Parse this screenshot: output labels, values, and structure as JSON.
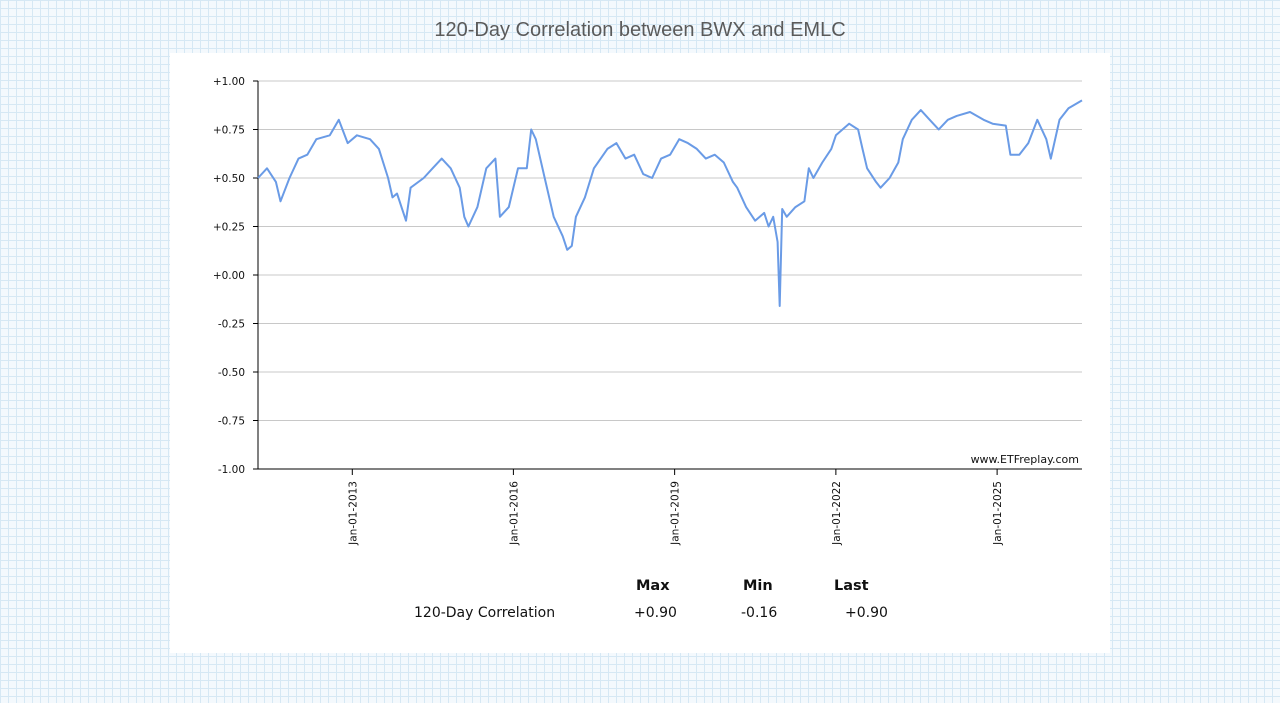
{
  "title": "120-Day Correlation between BWX and EMLC",
  "watermark": "www.ETFreplay.com",
  "colors": {
    "line": "#6a9be6",
    "grid": "#c8c8c8",
    "axis": "#000000"
  },
  "chart_data": {
    "type": "line",
    "title": "120-Day Correlation between BWX and EMLC",
    "xlabel": "",
    "ylabel": "",
    "ylim": [
      -1.0,
      1.0
    ],
    "xlim": [
      "2011-04-01",
      "2026-08-01"
    ],
    "grid": true,
    "y_ticks": [
      "+1.00",
      "+0.75",
      "+0.50",
      "+0.25",
      "+0.00",
      "-0.25",
      "-0.50",
      "-0.75",
      "-1.00"
    ],
    "x_ticks": [
      {
        "date": "2013-01-01",
        "label": "Jan-01-2013"
      },
      {
        "date": "2016-01-01",
        "label": "Jan-01-2016"
      },
      {
        "date": "2019-01-01",
        "label": "Jan-01-2019"
      },
      {
        "date": "2022-01-01",
        "label": "Jan-01-2022"
      },
      {
        "date": "2025-01-01",
        "label": "Jan-01-2025"
      }
    ],
    "series": [
      {
        "points": [
          [
            "2011-04-01",
            0.5
          ],
          [
            "2011-06-01",
            0.55
          ],
          [
            "2011-08-01",
            0.48
          ],
          [
            "2011-09-01",
            0.38
          ],
          [
            "2011-11-01",
            0.5
          ],
          [
            "2012-01-01",
            0.6
          ],
          [
            "2012-03-01",
            0.62
          ],
          [
            "2012-05-01",
            0.7
          ],
          [
            "2012-08-01",
            0.72
          ],
          [
            "2012-10-01",
            0.8
          ],
          [
            "2012-12-01",
            0.68
          ],
          [
            "2013-02-01",
            0.72
          ],
          [
            "2013-05-01",
            0.7
          ],
          [
            "2013-07-01",
            0.65
          ],
          [
            "2013-09-01",
            0.5
          ],
          [
            "2013-10-01",
            0.4
          ],
          [
            "2013-11-01",
            0.42
          ],
          [
            "2014-01-01",
            0.28
          ],
          [
            "2014-02-01",
            0.45
          ],
          [
            "2014-05-01",
            0.5
          ],
          [
            "2014-07-01",
            0.55
          ],
          [
            "2014-09-01",
            0.6
          ],
          [
            "2014-11-01",
            0.55
          ],
          [
            "2015-01-01",
            0.45
          ],
          [
            "2015-02-01",
            0.3
          ],
          [
            "2015-03-01",
            0.25
          ],
          [
            "2015-05-01",
            0.35
          ],
          [
            "2015-07-01",
            0.55
          ],
          [
            "2015-09-01",
            0.6
          ],
          [
            "2015-10-01",
            0.3
          ],
          [
            "2015-12-01",
            0.35
          ],
          [
            "2016-02-01",
            0.55
          ],
          [
            "2016-04-01",
            0.55
          ],
          [
            "2016-05-01",
            0.75
          ],
          [
            "2016-06-01",
            0.7
          ],
          [
            "2016-08-01",
            0.5
          ],
          [
            "2016-10-01",
            0.3
          ],
          [
            "2016-12-01",
            0.2
          ],
          [
            "2017-01-01",
            0.13
          ],
          [
            "2017-02-01",
            0.15
          ],
          [
            "2017-03-01",
            0.3
          ],
          [
            "2017-05-01",
            0.4
          ],
          [
            "2017-07-01",
            0.55
          ],
          [
            "2017-10-01",
            0.65
          ],
          [
            "2017-12-01",
            0.68
          ],
          [
            "2018-02-01",
            0.6
          ],
          [
            "2018-04-01",
            0.62
          ],
          [
            "2018-06-01",
            0.52
          ],
          [
            "2018-08-01",
            0.5
          ],
          [
            "2018-10-01",
            0.6
          ],
          [
            "2018-12-01",
            0.62
          ],
          [
            "2019-02-01",
            0.7
          ],
          [
            "2019-04-01",
            0.68
          ],
          [
            "2019-06-01",
            0.65
          ],
          [
            "2019-08-01",
            0.6
          ],
          [
            "2019-10-01",
            0.62
          ],
          [
            "2019-12-01",
            0.58
          ],
          [
            "2020-02-01",
            0.48
          ],
          [
            "2020-03-01",
            0.45
          ],
          [
            "2020-05-01",
            0.35
          ],
          [
            "2020-07-01",
            0.28
          ],
          [
            "2020-09-01",
            0.32
          ],
          [
            "2020-10-01",
            0.25
          ],
          [
            "2020-11-01",
            0.3
          ],
          [
            "2020-12-01",
            0.17
          ],
          [
            "2020-12-15",
            -0.16
          ],
          [
            "2021-01-01",
            0.34
          ],
          [
            "2021-02-01",
            0.3
          ],
          [
            "2021-04-01",
            0.35
          ],
          [
            "2021-06-01",
            0.38
          ],
          [
            "2021-07-01",
            0.55
          ],
          [
            "2021-08-01",
            0.5
          ],
          [
            "2021-10-01",
            0.58
          ],
          [
            "2021-12-01",
            0.65
          ],
          [
            "2022-01-01",
            0.72
          ],
          [
            "2022-04-01",
            0.78
          ],
          [
            "2022-06-01",
            0.75
          ],
          [
            "2022-07-01",
            0.65
          ],
          [
            "2022-08-01",
            0.55
          ],
          [
            "2022-10-01",
            0.48
          ],
          [
            "2022-11-01",
            0.45
          ],
          [
            "2023-01-01",
            0.5
          ],
          [
            "2023-03-01",
            0.58
          ],
          [
            "2023-04-01",
            0.7
          ],
          [
            "2023-06-01",
            0.8
          ],
          [
            "2023-08-01",
            0.85
          ],
          [
            "2023-10-01",
            0.8
          ],
          [
            "2023-12-01",
            0.75
          ],
          [
            "2024-02-01",
            0.8
          ],
          [
            "2024-04-01",
            0.82
          ],
          [
            "2024-07-01",
            0.84
          ],
          [
            "2024-10-01",
            0.8
          ],
          [
            "2024-12-01",
            0.78
          ],
          [
            "2025-03-01",
            0.77
          ],
          [
            "2025-04-01",
            0.62
          ],
          [
            "2025-06-01",
            0.62
          ],
          [
            "2025-08-01",
            0.68
          ],
          [
            "2025-10-01",
            0.8
          ],
          [
            "2025-12-01",
            0.7
          ],
          [
            "2026-01-01",
            0.6
          ],
          [
            "2026-03-01",
            0.8
          ],
          [
            "2026-05-01",
            0.86
          ],
          [
            "2026-08-01",
            0.9
          ]
        ]
      }
    ]
  },
  "stats": {
    "headers": {
      "max": "Max",
      "min": "Min",
      "last": "Last"
    },
    "row_label": "120-Day Correlation",
    "max": "+0.90",
    "min": "-0.16",
    "last": "+0.90"
  }
}
